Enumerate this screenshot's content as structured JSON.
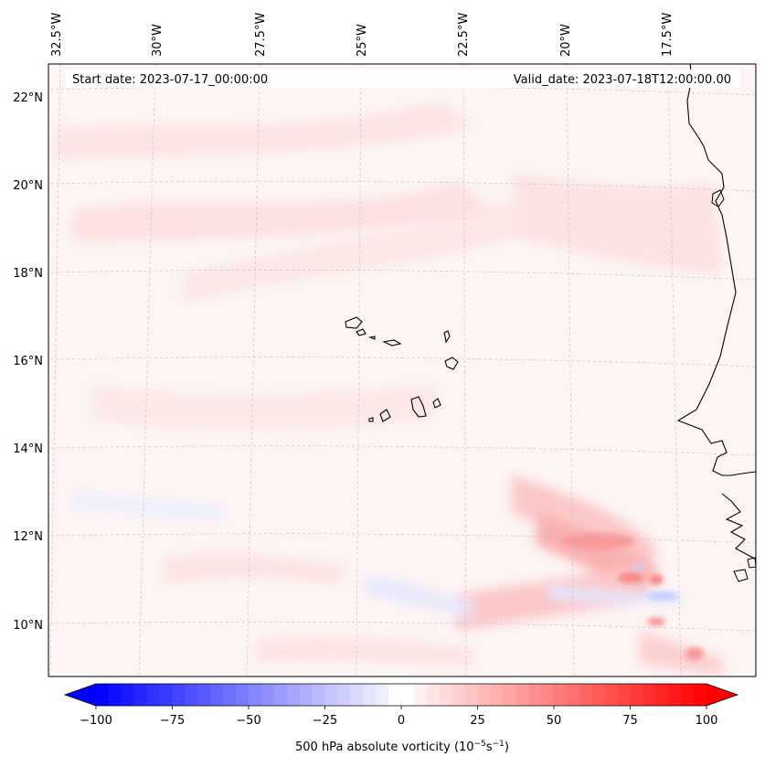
{
  "map": {
    "lon_range": [
      -32.5,
      -16.0
    ],
    "lat_range": [
      8.8,
      22.8
    ],
    "gridlines": "dashed grey"
  },
  "header": {
    "start_label": "Start date: 2023-07-17_00:00:00",
    "valid_label": "Valid_date: 2023-07-18T12:00:00.00"
  },
  "lon_ticks": [
    "32.5°W",
    "30°W",
    "27.5°W",
    "25°W",
    "22.5°W",
    "20°W",
    "17.5°W"
  ],
  "lat_ticks": [
    "22°N",
    "20°N",
    "18°N",
    "16°N",
    "14°N",
    "12°N",
    "10°N"
  ],
  "colorbar": {
    "min": -100,
    "max": 100,
    "ticks": [
      "−100",
      "−75",
      "−50",
      "−25",
      "0",
      "25",
      "50",
      "75",
      "100"
    ],
    "negative_color": "#0000ff",
    "positive_color": "#ff0000",
    "label_main": "500 hPa absolute vorticity (10",
    "label_exp1": "−5",
    "label_mid": "s",
    "label_exp2": "−1",
    "label_end": ")"
  }
}
